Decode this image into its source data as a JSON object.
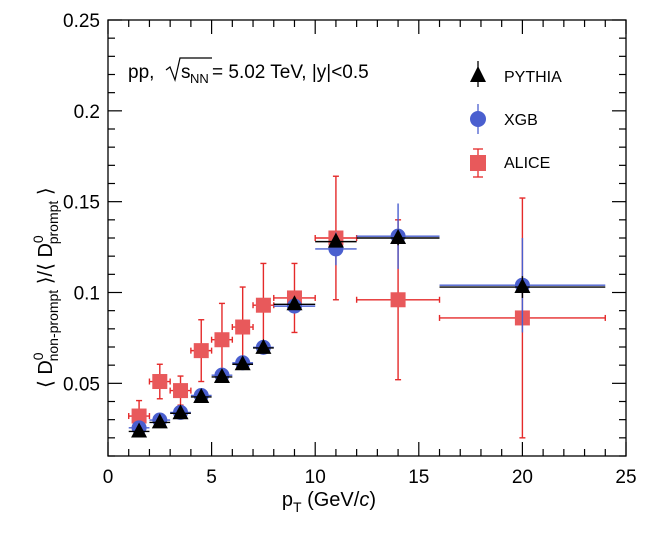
{
  "chart_data": {
    "type": "scatter",
    "title": "",
    "xlabel": {
      "main": "p",
      "sub": "T",
      "units": " (GeV/",
      "c": "c",
      "close": ")"
    },
    "ylabel": {
      "open": "⟨ D",
      "sup1": "0",
      "sub1": "non-prompt",
      "mid": " ⟩/⟨ D",
      "sup2": "0",
      "sub2": "prompt",
      "close": " ⟩"
    },
    "xlim": [
      0,
      25
    ],
    "ylim": [
      0.01,
      0.25
    ],
    "x_ticks": [
      "0",
      "5",
      "10",
      "15",
      "20",
      "25"
    ],
    "y_ticks": [
      "0.05",
      "0.1",
      "0.15",
      "0.2",
      "0.25"
    ],
    "annotation": {
      "prefix": "pp, ",
      "s": "s",
      "s_sub": "NN",
      "suffix": " = 5.02 TeV, |y|<0.5"
    },
    "legend": [
      {
        "label": "PYTHIA",
        "marker": "triangle",
        "color": "#000000"
      },
      {
        "label": "XGB",
        "marker": "circle",
        "color": "#4a5fcf"
      },
      {
        "label": "ALICE",
        "marker": "square",
        "color": "#e52a2a"
      }
    ],
    "series": [
      {
        "name": "PYTHIA",
        "marker": "triangle",
        "color": "#000000",
        "points": [
          {
            "x": 1.5,
            "y": 0.0235,
            "xerr": 0.5,
            "yerr": 0.0
          },
          {
            "x": 2.5,
            "y": 0.0285,
            "xerr": 0.5,
            "yerr": 0.0
          },
          {
            "x": 3.5,
            "y": 0.0335,
            "xerr": 0.5,
            "yerr": 0.0
          },
          {
            "x": 4.5,
            "y": 0.0425,
            "xerr": 0.5,
            "yerr": 0.0
          },
          {
            "x": 5.5,
            "y": 0.0535,
            "xerr": 0.5,
            "yerr": 0.0
          },
          {
            "x": 6.5,
            "y": 0.0605,
            "xerr": 0.5,
            "yerr": 0.0
          },
          {
            "x": 7.5,
            "y": 0.0695,
            "xerr": 0.5,
            "yerr": 0.0
          },
          {
            "x": 9.0,
            "y": 0.0935,
            "xerr": 1.0,
            "yerr": 0.002
          },
          {
            "x": 11.0,
            "y": 0.128,
            "xerr": 1.0,
            "yerr": 0.002
          },
          {
            "x": 14.0,
            "y": 0.13,
            "xerr": 2.0,
            "yerr": 0.004
          },
          {
            "x": 20.0,
            "y": 0.103,
            "xerr": 4.0,
            "yerr": 0.006
          }
        ]
      },
      {
        "name": "XGB",
        "marker": "circle",
        "color": "#4a5fcf",
        "points": [
          {
            "x": 1.5,
            "y": 0.0255,
            "xerr": 0.5,
            "yerr": 0.0
          },
          {
            "x": 2.5,
            "y": 0.0298,
            "xerr": 0.5,
            "yerr": 0.0
          },
          {
            "x": 3.5,
            "y": 0.034,
            "xerr": 0.5,
            "yerr": 0.0
          },
          {
            "x": 4.5,
            "y": 0.0433,
            "xerr": 0.5,
            "yerr": 0.0
          },
          {
            "x": 5.5,
            "y": 0.0545,
            "xerr": 0.5,
            "yerr": 0.0
          },
          {
            "x": 6.5,
            "y": 0.0613,
            "xerr": 0.5,
            "yerr": 0.0
          },
          {
            "x": 7.5,
            "y": 0.0698,
            "xerr": 0.5,
            "yerr": 0.0
          },
          {
            "x": 9.0,
            "y": 0.0925,
            "xerr": 1.0,
            "yerr": 0.004
          },
          {
            "x": 11.0,
            "y": 0.124,
            "xerr": 1.0,
            "yerr": 0.009
          },
          {
            "x": 14.0,
            "y": 0.131,
            "xerr": 2.0,
            "yerr": 0.018
          },
          {
            "x": 20.0,
            "y": 0.104,
            "xerr": 4.0,
            "yerr": 0.026
          }
        ]
      },
      {
        "name": "ALICE",
        "marker": "square",
        "color": "#e52a2a",
        "points": [
          {
            "x": 1.5,
            "y": 0.032,
            "xerr": 0.5,
            "yerr": 0.0085
          },
          {
            "x": 2.5,
            "y": 0.051,
            "xerr": 0.5,
            "yerr": 0.0095
          },
          {
            "x": 3.5,
            "y": 0.046,
            "xerr": 0.5,
            "yerr": 0.008
          },
          {
            "x": 4.5,
            "y": 0.068,
            "xerr": 0.5,
            "yerr": 0.017
          },
          {
            "x": 5.5,
            "y": 0.074,
            "xerr": 0.5,
            "yerr": 0.02
          },
          {
            "x": 6.5,
            "y": 0.081,
            "xerr": 0.5,
            "yerr": 0.022
          },
          {
            "x": 7.5,
            "y": 0.093,
            "xerr": 0.5,
            "yerr": 0.023
          },
          {
            "x": 9.0,
            "y": 0.097,
            "xerr": 1.0,
            "yerr": 0.019
          },
          {
            "x": 11.0,
            "y": 0.13,
            "xerr": 1.0,
            "yerr": 0.034
          },
          {
            "x": 14.0,
            "y": 0.096,
            "xerr": 2.0,
            "yerr": 0.044
          },
          {
            "x": 20.0,
            "y": 0.086,
            "xerr": 4.0,
            "yerr": 0.066
          }
        ]
      }
    ]
  }
}
